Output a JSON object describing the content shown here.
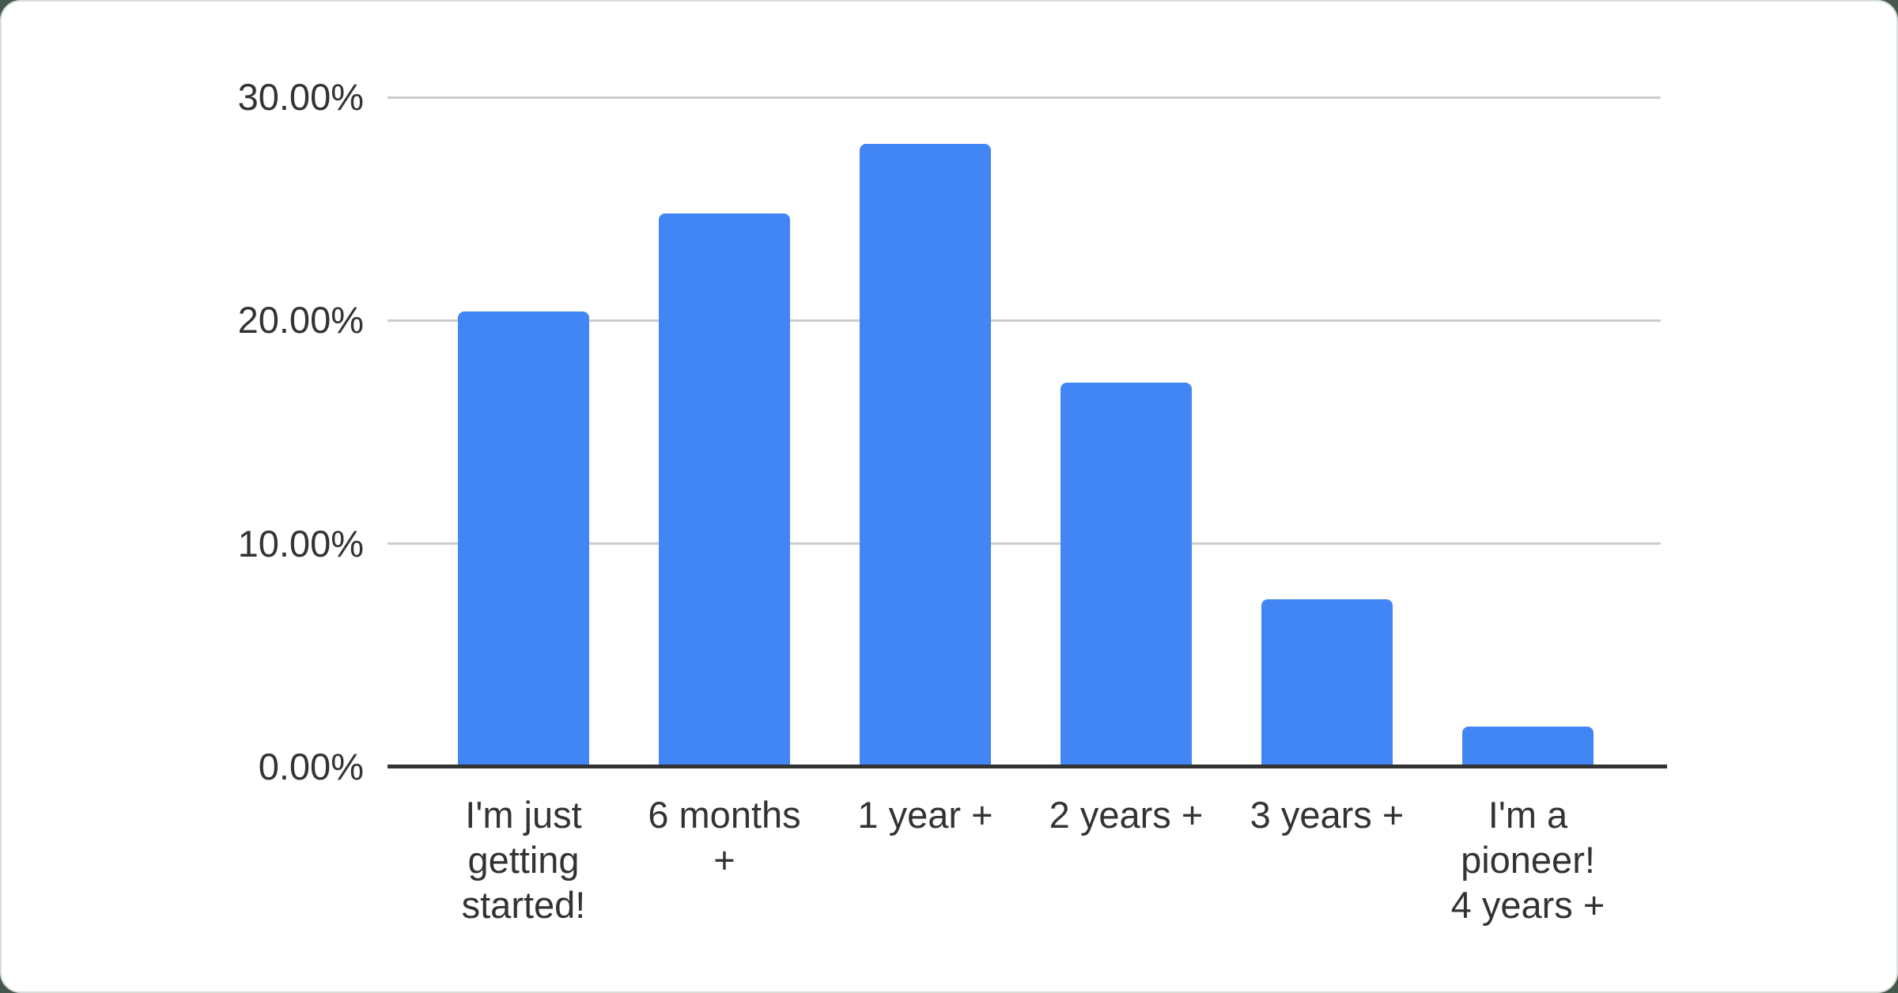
{
  "page": {
    "background_color": "#44584b",
    "card_color": "#ffffff",
    "card_border_color": "#d9dedb"
  },
  "chart_data": {
    "type": "bar",
    "title": "",
    "xlabel": "",
    "ylabel": "",
    "categories": [
      "I'm just\ngetting\nstarted!",
      "6 months\n+",
      "1 year +",
      "2 years +",
      "3 years +",
      "I'm a\npioneer!\n4 years +"
    ],
    "values": [
      20.4,
      24.8,
      27.9,
      17.2,
      7.5,
      1.8
    ],
    "ylim": [
      0,
      30
    ],
    "y_ticks": [
      0,
      10,
      20,
      30
    ],
    "y_tick_labels": [
      "0.00%",
      "10.00%",
      "20.00%",
      "30.00%"
    ],
    "grid": true,
    "legend": "none",
    "bar_color": "#4285f4",
    "gridline_color": "#cccccc",
    "axis_line_color": "#333333",
    "label_color": "#333333"
  }
}
